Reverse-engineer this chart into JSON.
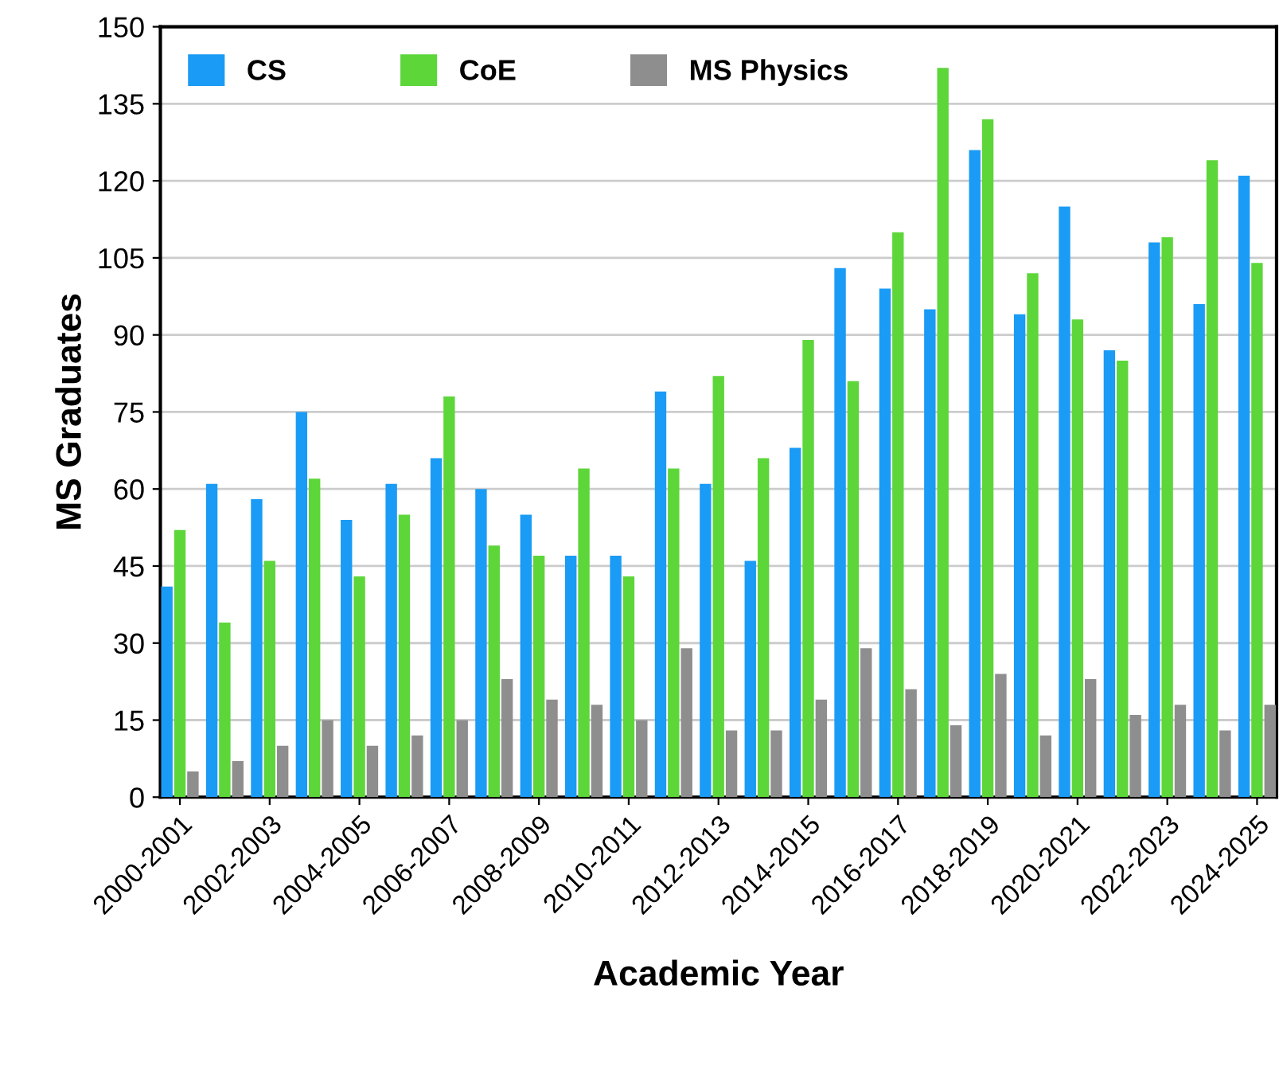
{
  "chart_data": {
    "type": "bar",
    "xlabel": "Academic Year",
    "ylabel": "MS Graduates",
    "categories": [
      "2000-2001",
      null,
      "2002-2003",
      null,
      "2004-2005",
      null,
      "2006-2007",
      null,
      "2008-2009",
      null,
      "2010-2011",
      null,
      "2012-2013",
      null,
      "2014-2015",
      null,
      "2016-2017",
      null,
      "2018-2019",
      null,
      "2020-2021",
      null,
      "2022-2023",
      null,
      "2024-2025"
    ],
    "series": [
      {
        "name": "CS",
        "color": "#1a9bf5",
        "values": [
          41,
          61,
          58,
          75,
          54,
          61,
          66,
          60,
          55,
          47,
          47,
          79,
          61,
          46,
          68,
          103,
          99,
          95,
          126,
          94,
          115,
          87,
          108,
          96,
          121
        ]
      },
      {
        "name": "CoE",
        "color": "#5dd63a",
        "values": [
          52,
          34,
          46,
          62,
          43,
          55,
          78,
          49,
          47,
          64,
          43,
          64,
          82,
          66,
          89,
          81,
          110,
          142,
          132,
          102,
          93,
          85,
          109,
          124,
          104
        ]
      },
      {
        "name": "MS Physics",
        "color": "#8e8e8e",
        "values": [
          5,
          7,
          10,
          15,
          10,
          12,
          15,
          23,
          19,
          18,
          15,
          29,
          13,
          13,
          19,
          29,
          21,
          14,
          24,
          12,
          23,
          16,
          18,
          13,
          18
        ]
      }
    ],
    "ylim": [
      0,
      150
    ],
    "yticks": [
      0,
      15,
      30,
      45,
      60,
      75,
      90,
      105,
      120,
      135,
      150
    ],
    "grid": "y",
    "legend": "top left"
  }
}
